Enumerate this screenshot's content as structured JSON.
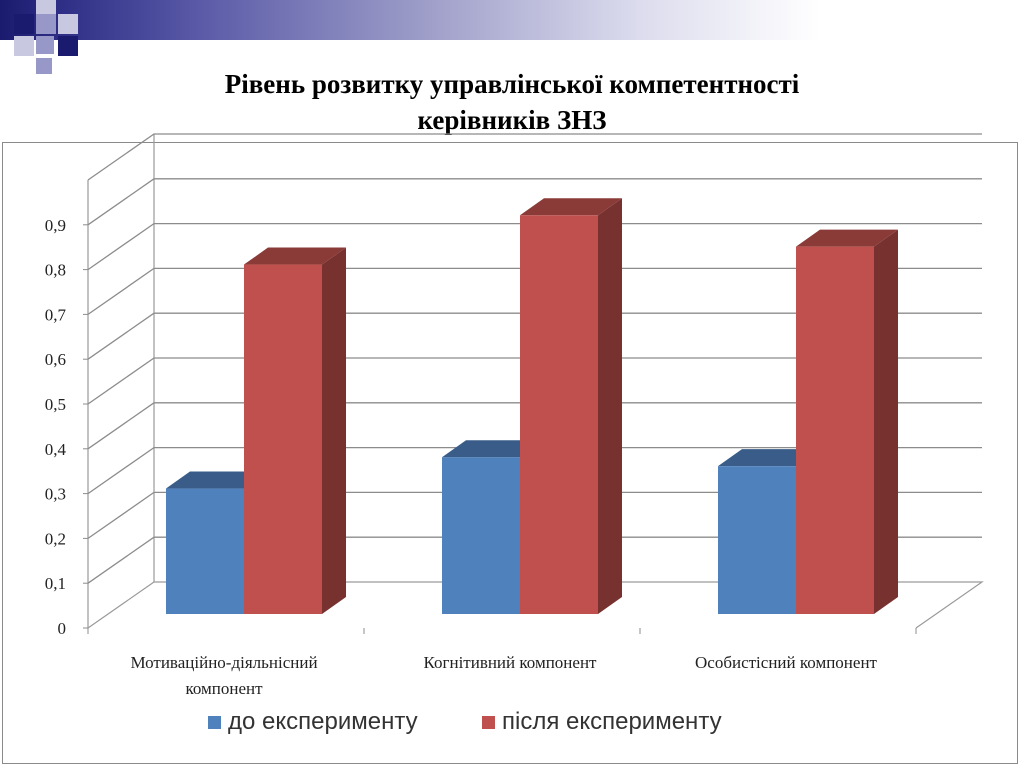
{
  "slide": {
    "title": "Рівень розвитку управлінської компетентності\nкерівників ЗНЗ",
    "decoration": {
      "band_colors": [
        "#1a1a6e",
        "#ffffff"
      ],
      "square_colors": [
        "#1a1a6e",
        "#9898c8",
        "#c8c8e0"
      ]
    }
  },
  "chart_data": {
    "type": "bar",
    "title": "",
    "categories": [
      "Мотиваційно-діяльнісний компонент",
      "Когнітивний компонент",
      "Особистісний компонент"
    ],
    "category_lines": [
      [
        "Мотиваційно-діяльнісний",
        "компонент"
      ],
      [
        "Когнітивний компонент"
      ],
      [
        "Особистісний компонент"
      ]
    ],
    "series": [
      {
        "name": "до експерименту",
        "values": [
          0.28,
          0.35,
          0.33
        ],
        "color": "#4f81bd"
      },
      {
        "name": "після експерименту",
        "values": [
          0.78,
          0.89,
          0.82
        ],
        "color": "#c0504d"
      }
    ],
    "yticks": [
      "0",
      "0,1",
      "0,2",
      "0,3",
      "0,4",
      "0,5",
      "0,6",
      "0,7",
      "0,8",
      "0,9"
    ],
    "ylim": [
      0,
      1.0
    ],
    "three_d": true,
    "grid": true,
    "legend_position": "bottom"
  }
}
